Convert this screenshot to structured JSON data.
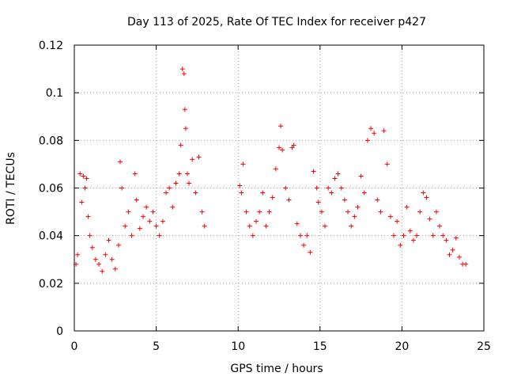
{
  "chart_data": {
    "type": "scatter",
    "title": "Day 113 of 2025, Rate Of TEC Index for receiver p427",
    "xlabel": "GPS time / hours",
    "ylabel": "ROTI / TECUs",
    "xlim": [
      0,
      25
    ],
    "ylim": [
      0,
      0.12
    ],
    "xticks": [
      0,
      5,
      10,
      15,
      20,
      25
    ],
    "xtick_labels": [
      "0",
      "5",
      "10",
      "15",
      "20",
      "25"
    ],
    "yticks": [
      0,
      0.02,
      0.04,
      0.06,
      0.08,
      0.1,
      0.12
    ],
    "ytick_labels": [
      "0",
      "0.02",
      "0.04",
      "0.06",
      "0.08",
      "0.1",
      "0.12"
    ],
    "grid": true,
    "marker": "+",
    "color": "#ff0000",
    "series": [
      {
        "name": "ROTI",
        "x": [
          0.1,
          0.2,
          0.35,
          0.45,
          0.55,
          0.65,
          0.75,
          0.85,
          0.95,
          1.1,
          1.3,
          1.5,
          1.7,
          1.9,
          2.1,
          2.3,
          2.5,
          2.7,
          2.8,
          2.9,
          3.1,
          3.3,
          3.5,
          3.7,
          3.8,
          4.0,
          4.2,
          4.4,
          4.6,
          4.8,
          5.0,
          5.2,
          5.4,
          5.6,
          5.8,
          6.0,
          6.2,
          6.4,
          6.5,
          6.6,
          6.7,
          6.75,
          6.8,
          6.9,
          7.0,
          7.2,
          7.4,
          7.6,
          7.8,
          7.95,
          10.1,
          10.2,
          10.3,
          10.5,
          10.7,
          10.9,
          11.1,
          11.3,
          11.5,
          11.7,
          11.9,
          12.1,
          12.3,
          12.5,
          12.6,
          12.7,
          12.9,
          13.1,
          13.3,
          13.4,
          13.6,
          13.8,
          14.0,
          14.2,
          14.4,
          14.6,
          14.8,
          14.9,
          15.1,
          15.3,
          15.5,
          15.7,
          15.9,
          16.1,
          16.3,
          16.5,
          16.7,
          16.9,
          17.1,
          17.3,
          17.5,
          17.7,
          17.9,
          18.1,
          18.3,
          18.5,
          18.7,
          18.9,
          19.1,
          19.3,
          19.5,
          19.7,
          19.9,
          20.1,
          20.3,
          20.5,
          20.7,
          20.9,
          21.1,
          21.3,
          21.5,
          21.7,
          21.9,
          22.1,
          22.3,
          22.5,
          22.7,
          22.9,
          23.1,
          23.3,
          23.5,
          23.7,
          23.9
        ],
        "values": [
          0.028,
          0.032,
          0.066,
          0.054,
          0.065,
          0.06,
          0.064,
          0.048,
          0.04,
          0.035,
          0.03,
          0.028,
          0.025,
          0.032,
          0.038,
          0.03,
          0.026,
          0.036,
          0.071,
          0.06,
          0.044,
          0.05,
          0.04,
          0.066,
          0.055,
          0.043,
          0.048,
          0.052,
          0.046,
          0.05,
          0.044,
          0.04,
          0.046,
          0.058,
          0.06,
          0.052,
          0.062,
          0.066,
          0.078,
          0.11,
          0.108,
          0.093,
          0.085,
          0.066,
          0.062,
          0.072,
          0.058,
          0.073,
          0.05,
          0.044,
          0.061,
          0.058,
          0.07,
          0.05,
          0.044,
          0.04,
          0.046,
          0.05,
          0.058,
          0.044,
          0.05,
          0.056,
          0.068,
          0.077,
          0.086,
          0.076,
          0.06,
          0.055,
          0.077,
          0.078,
          0.045,
          0.04,
          0.036,
          0.04,
          0.033,
          0.067,
          0.06,
          0.054,
          0.05,
          0.044,
          0.06,
          0.058,
          0.064,
          0.066,
          0.06,
          0.055,
          0.05,
          0.044,
          0.048,
          0.052,
          0.065,
          0.058,
          0.08,
          0.085,
          0.083,
          0.055,
          0.05,
          0.084,
          0.07,
          0.048,
          0.04,
          0.046,
          0.036,
          0.04,
          0.052,
          0.042,
          0.038,
          0.04,
          0.05,
          0.058,
          0.056,
          0.047,
          0.04,
          0.05,
          0.044,
          0.04,
          0.038,
          0.032,
          0.034,
          0.039,
          0.031,
          0.028,
          0.028
        ]
      }
    ]
  }
}
